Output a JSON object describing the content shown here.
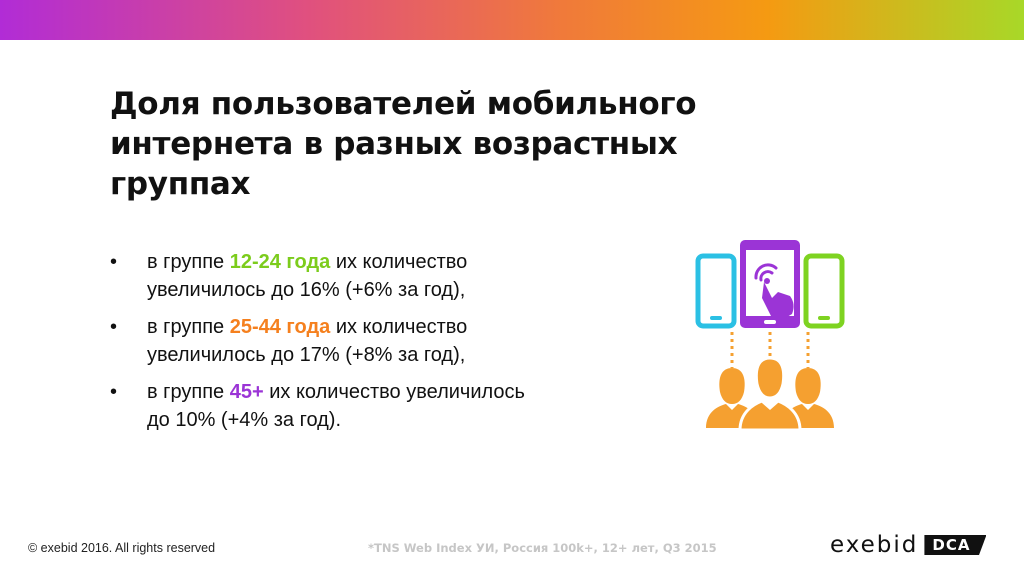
{
  "slide": {
    "title": "Доля пользователей мобильного интернета в разных возрастных группах",
    "bullets": [
      {
        "marker": "•",
        "prefix": "в группе ",
        "highlight": "12-24 года",
        "suffix": " их количество увеличилось до 16% (+6% за год),"
      },
      {
        "marker": "•",
        "prefix": "в группе ",
        "highlight": "25-44 года",
        "suffix": " их количество увеличилось до 17% (+8% за год),"
      },
      {
        "marker": "•",
        "prefix": "в группе ",
        "highlight": "45+",
        "suffix": " их количество увеличилось до 10% (+4% за год)."
      }
    ]
  },
  "illustration": {
    "icon": "mobile-users-icon",
    "colors": {
      "left_phone": "#2bc0e4",
      "center_tablet": "#9b34d6",
      "right_phone": "#7ed321",
      "people": "#f5a030"
    }
  },
  "footer": {
    "copyright": "© exebid 2016. All rights reserved",
    "source": "*TNS Web Index УИ, Россия 100k+, 12+ лет, Q3 2015",
    "logo_word": "exebid",
    "logo_tag": "DCA"
  },
  "colors": {
    "green": "#7ccc1c",
    "orange": "#f5801e",
    "purple": "#9b34d6",
    "gradient": [
      "#b12cd6",
      "#e0507f",
      "#f07a3a",
      "#f59a12",
      "#a8d828"
    ]
  }
}
